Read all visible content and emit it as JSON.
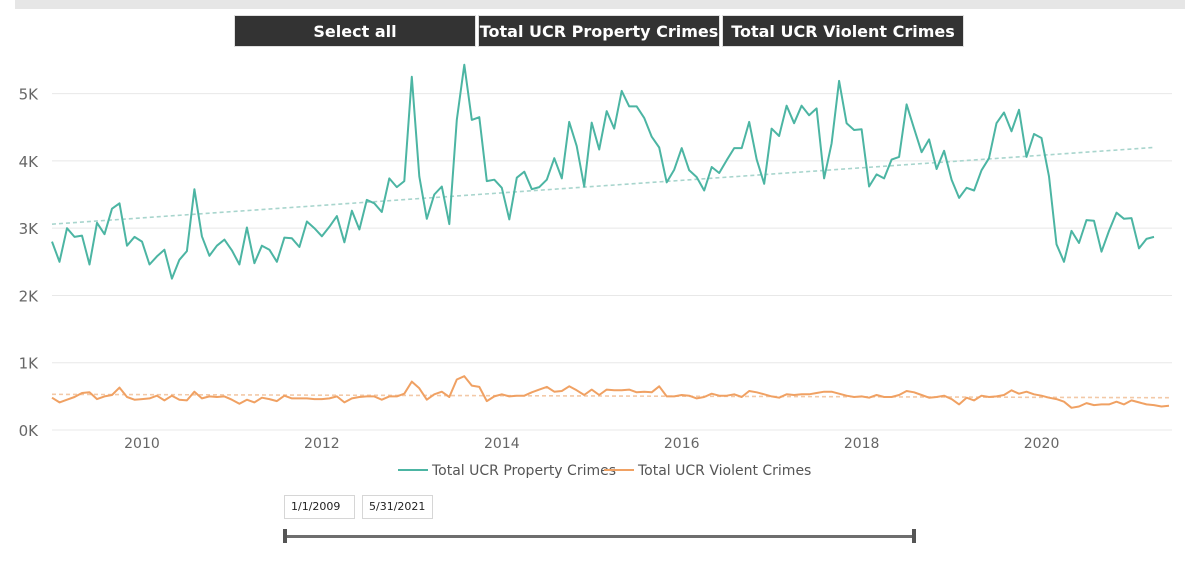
{
  "slicer": {
    "buttons": [
      "Select all",
      "Total UCR Property Crimes",
      "Total UCR Violent Crimes"
    ]
  },
  "date_range": {
    "start": "1/1/2009",
    "end": "5/31/2021"
  },
  "colors": {
    "property": "#4cb5a3",
    "violent": "#f0a163",
    "property_trend": "#a8d5cd",
    "violent_trend": "#f3c9a7",
    "grid": "#e8e8e8",
    "axis_text": "#666666"
  },
  "chart_data": {
    "type": "line",
    "title": "",
    "xlabel": "",
    "ylabel": "",
    "ylim": [
      0,
      5500
    ],
    "xlim": [
      2009.0,
      2021.45
    ],
    "y_ticks": [
      0,
      1000,
      2000,
      3000,
      4000,
      5000
    ],
    "y_tick_labels": [
      "0K",
      "1K",
      "2K",
      "3K",
      "4K",
      "5K"
    ],
    "x_ticks": [
      2010,
      2012,
      2014,
      2016,
      2018,
      2020
    ],
    "x_tick_labels": [
      "2010",
      "2012",
      "2014",
      "2016",
      "2018",
      "2020"
    ],
    "legend": [
      "Total UCR Property Crimes",
      "Total UCR Violent Crimes"
    ],
    "legend_position": "bottom-center",
    "start_year": 2009.0,
    "step_years": 0.08333,
    "series": [
      {
        "name": "Total UCR Property Crimes",
        "trend": [
          3060,
          4200
        ],
        "values": [
          2800,
          2500,
          3000,
          2870,
          2890,
          2460,
          3080,
          2910,
          3290,
          3370,
          2740,
          2870,
          2800,
          2460,
          2580,
          2680,
          2250,
          2530,
          2660,
          3580,
          2880,
          2590,
          2740,
          2830,
          2670,
          2460,
          3010,
          2480,
          2740,
          2680,
          2500,
          2860,
          2850,
          2720,
          3100,
          3000,
          2880,
          3020,
          3180,
          2790,
          3260,
          2980,
          3420,
          3370,
          3240,
          3740,
          3610,
          3700,
          5250,
          3770,
          3140,
          3500,
          3620,
          3060,
          4610,
          5430,
          4610,
          4650,
          3700,
          3720,
          3600,
          3130,
          3750,
          3840,
          3580,
          3610,
          3720,
          4040,
          3740,
          4580,
          4220,
          3620,
          4570,
          4170,
          4740,
          4480,
          5040,
          4810,
          4810,
          4640,
          4360,
          4200,
          3680,
          3870,
          4190,
          3860,
          3760,
          3560,
          3910,
          3820,
          4010,
          4190,
          4190,
          4580,
          4020,
          3660,
          4480,
          4370,
          4820,
          4560,
          4820,
          4680,
          4780,
          3740,
          4260,
          5190,
          4560,
          4460,
          4470,
          3620,
          3800,
          3740,
          4020,
          4060,
          4840,
          4480,
          4130,
          4320,
          3880,
          4150,
          3720,
          3450,
          3600,
          3560,
          3860,
          4040,
          4560,
          4720,
          4440,
          4760,
          4060,
          4400,
          4340,
          3770,
          2760,
          2500,
          2960,
          2780,
          3120,
          3110,
          2650,
          2960,
          3230,
          3140,
          3150,
          2700,
          2840,
          2870
        ]
      },
      {
        "name": "Total UCR Violent Crimes",
        "trend": [
          530,
          480
        ],
        "values": [
          480,
          410,
          450,
          490,
          550,
          560,
          460,
          500,
          520,
          630,
          490,
          450,
          460,
          470,
          510,
          440,
          510,
          450,
          440,
          570,
          470,
          500,
          490,
          500,
          450,
          390,
          450,
          410,
          480,
          460,
          430,
          510,
          470,
          470,
          470,
          460,
          460,
          470,
          500,
          410,
          470,
          490,
          500,
          500,
          450,
          500,
          500,
          540,
          720,
          620,
          450,
          530,
          570,
          490,
          750,
          800,
          660,
          640,
          430,
          500,
          530,
          500,
          510,
          510,
          560,
          600,
          640,
          570,
          580,
          650,
          590,
          520,
          600,
          520,
          600,
          590,
          590,
          600,
          560,
          570,
          560,
          650,
          500,
          500,
          520,
          510,
          470,
          490,
          540,
          510,
          510,
          530,
          490,
          580,
          560,
          530,
          500,
          480,
          530,
          520,
          530,
          530,
          550,
          570,
          570,
          540,
          510,
          490,
          500,
          480,
          520,
          490,
          490,
          520,
          580,
          560,
          520,
          480,
          490,
          510,
          460,
          380,
          480,
          440,
          510,
          490,
          500,
          520,
          590,
          540,
          570,
          530,
          510,
          480,
          460,
          420,
          330,
          350,
          400,
          370,
          380,
          380,
          420,
          380,
          440,
          410,
          380,
          370,
          350,
          360
        ]
      }
    ]
  }
}
